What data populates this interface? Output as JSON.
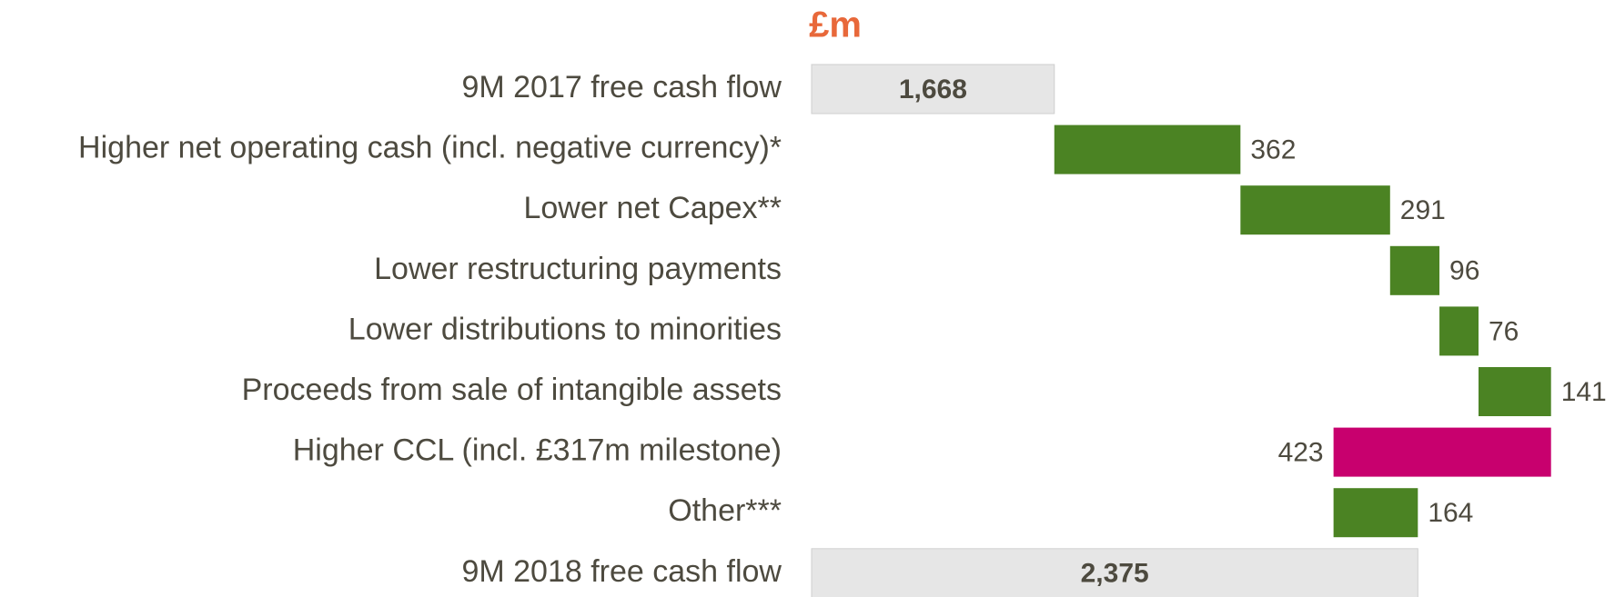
{
  "chart_data": {
    "type": "waterfall",
    "title": "£m",
    "categories": [
      "9M 2017 free cash flow",
      "Higher net operating cash (incl. negative currency)*",
      "Lower net Capex**",
      "Lower restructuring payments",
      "Lower distributions to minorities",
      "Proceeds from sale of intangible assets",
      "Higher CCL (incl. £317m milestone)",
      "Other***",
      "9M 2018 free cash flow"
    ],
    "values": [
      1668,
      362,
      291,
      96,
      76,
      141,
      -423,
      164,
      2375
    ],
    "value_labels": [
      "1,668",
      "362",
      "291",
      "96",
      "76",
      "141",
      "423",
      "164",
      "2,375"
    ],
    "xlim": [
      1196,
      2700
    ],
    "total_color": "#e6e6e6",
    "increase_color": "#4b8323",
    "decrease_color": "#c8006e"
  }
}
